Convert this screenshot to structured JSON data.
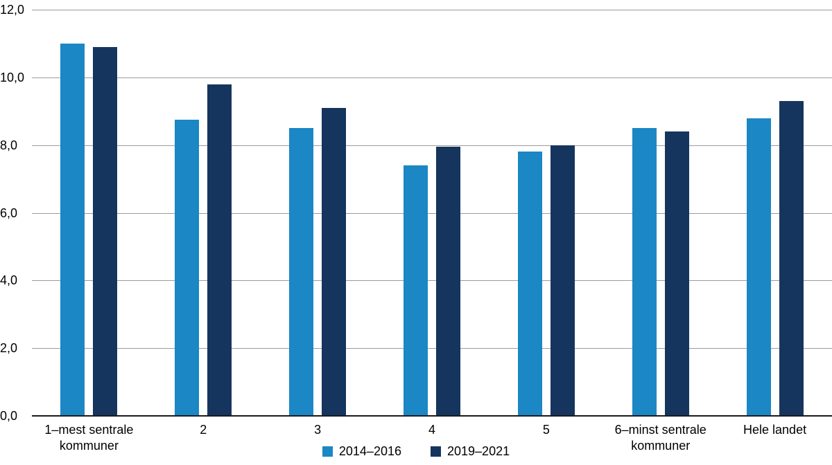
{
  "chart_data": {
    "type": "bar",
    "title": "",
    "xlabel": "",
    "ylabel": "",
    "categories": [
      "1–mest sentrale\nkommuner",
      "2",
      "3",
      "4",
      "5",
      "6–minst sentrale\nkommuner",
      "Hele landet"
    ],
    "series": [
      {
        "name": "2014–2016",
        "color": "#1b87c4",
        "values": [
          11.0,
          8.75,
          8.5,
          7.4,
          7.8,
          8.5,
          8.8
        ]
      },
      {
        "name": "2019–2021",
        "color": "#15355e",
        "values": [
          10.9,
          9.8,
          9.1,
          7.95,
          8.0,
          8.4,
          9.3
        ]
      }
    ],
    "ylim": [
      0,
      12
    ],
    "ytick_step": 2,
    "ytick_labels": [
      "0,0",
      "2,0",
      "4,0",
      "6,0",
      "8,0",
      "10,0",
      "12,0"
    ],
    "grid": true,
    "legend_position": "bottom",
    "gridline_color": "#9b9b9b",
    "axis_line_color": "#1a1a1a"
  }
}
